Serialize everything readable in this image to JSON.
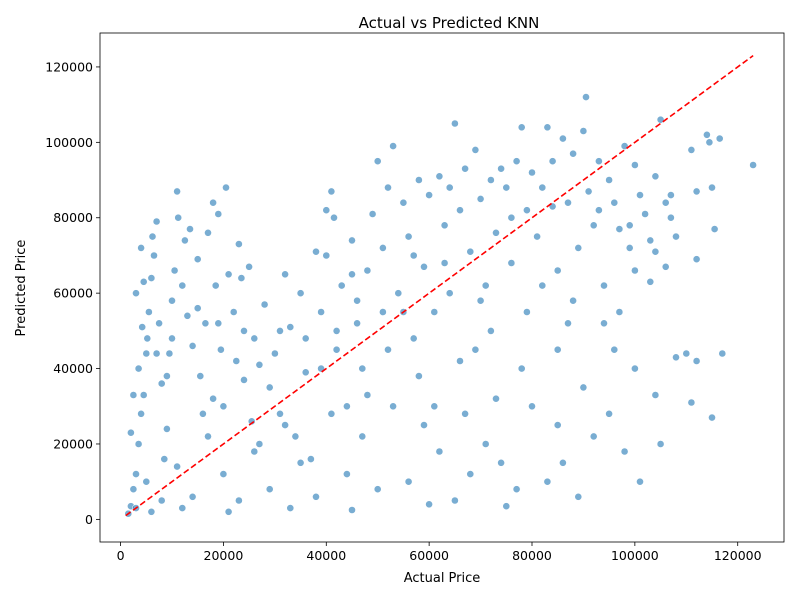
{
  "chart_data": {
    "type": "scatter",
    "title": "Actual vs Predicted KNN",
    "xlabel": "Actual Price",
    "ylabel": "Predicted Price",
    "xlim": [
      -4000,
      129000
    ],
    "ylim": [
      -6000,
      129000
    ],
    "xticks": [
      0,
      20000,
      40000,
      60000,
      80000,
      100000,
      120000
    ],
    "yticks": [
      0,
      20000,
      40000,
      60000,
      80000,
      100000,
      120000
    ],
    "xtick_labels": [
      "0",
      "20000",
      "40000",
      "60000",
      "80000",
      "100000",
      "120000"
    ],
    "ytick_labels": [
      "0",
      "20000",
      "40000",
      "60000",
      "80000",
      "100000",
      "120000"
    ],
    "grid": false,
    "point_color": "#1f77b4",
    "reference_line": {
      "style": "dashed",
      "color": "#ff0000",
      "x": [
        1000,
        123000
      ],
      "y": [
        1000,
        123000
      ]
    },
    "points": [
      [
        1500,
        1500
      ],
      [
        2000,
        3500
      ],
      [
        2500,
        8000
      ],
      [
        3000,
        12000
      ],
      [
        3500,
        20000
      ],
      [
        4000,
        28000
      ],
      [
        4500,
        33000
      ],
      [
        5000,
        44000
      ],
      [
        5500,
        55000
      ],
      [
        6000,
        64000
      ],
      [
        6500,
        70000
      ],
      [
        7000,
        79000
      ],
      [
        4000,
        72000
      ],
      [
        3000,
        60000
      ],
      [
        2000,
        23000
      ],
      [
        2500,
        33000
      ],
      [
        3500,
        40000
      ],
      [
        4200,
        51000
      ],
      [
        5200,
        48000
      ],
      [
        6200,
        75000
      ],
      [
        7500,
        52000
      ],
      [
        8000,
        36000
      ],
      [
        8500,
        16000
      ],
      [
        9000,
        24000
      ],
      [
        9500,
        44000
      ],
      [
        10000,
        58000
      ],
      [
        10500,
        66000
      ],
      [
        11000,
        87000
      ],
      [
        11200,
        80000
      ],
      [
        12000,
        62000
      ],
      [
        12500,
        74000
      ],
      [
        13000,
        54000
      ],
      [
        13500,
        77000
      ],
      [
        14000,
        46000
      ],
      [
        15000,
        69000
      ],
      [
        15500,
        38000
      ],
      [
        16000,
        28000
      ],
      [
        16500,
        52000
      ],
      [
        17000,
        76000
      ],
      [
        18000,
        84000
      ],
      [
        18500,
        62000
      ],
      [
        19000,
        81000
      ],
      [
        19500,
        45000
      ],
      [
        20000,
        30000
      ],
      [
        20500,
        88000
      ],
      [
        21000,
        65000
      ],
      [
        22000,
        55000
      ],
      [
        22500,
        42000
      ],
      [
        23000,
        73000
      ],
      [
        23500,
        64000
      ],
      [
        24000,
        37000
      ],
      [
        25000,
        67000
      ],
      [
        25500,
        26000
      ],
      [
        26000,
        48000
      ],
      [
        27000,
        20000
      ],
      [
        28000,
        57000
      ],
      [
        29000,
        35000
      ],
      [
        30000,
        44000
      ],
      [
        31000,
        28000
      ],
      [
        32000,
        65000
      ],
      [
        33000,
        51000
      ],
      [
        34000,
        22000
      ],
      [
        35000,
        60000
      ],
      [
        36000,
        39000
      ],
      [
        37000,
        16000
      ],
      [
        38000,
        71000
      ],
      [
        39000,
        55000
      ],
      [
        40000,
        70000
      ],
      [
        41000,
        87000
      ],
      [
        41500,
        80000
      ],
      [
        42000,
        45000
      ],
      [
        43000,
        62000
      ],
      [
        44000,
        30000
      ],
      [
        45000,
        74000
      ],
      [
        46000,
        52000
      ],
      [
        47000,
        40000
      ],
      [
        48000,
        66000
      ],
      [
        49000,
        81000
      ],
      [
        50000,
        95000
      ],
      [
        51000,
        72000
      ],
      [
        52000,
        88000
      ],
      [
        53000,
        99000
      ],
      [
        54000,
        60000
      ],
      [
        55000,
        84000
      ],
      [
        56000,
        75000
      ],
      [
        57000,
        48000
      ],
      [
        58000,
        90000
      ],
      [
        59000,
        67000
      ],
      [
        60000,
        86000
      ],
      [
        61000,
        55000
      ],
      [
        62000,
        91000
      ],
      [
        63000,
        78000
      ],
      [
        64000,
        88000
      ],
      [
        65000,
        105000
      ],
      [
        66000,
        82000
      ],
      [
        67000,
        93000
      ],
      [
        68000,
        71000
      ],
      [
        69000,
        98000
      ],
      [
        70000,
        85000
      ],
      [
        71000,
        62000
      ],
      [
        72000,
        90000
      ],
      [
        73000,
        76000
      ],
      [
        74000,
        93000
      ],
      [
        75000,
        88000
      ],
      [
        76000,
        68000
      ],
      [
        77000,
        95000
      ],
      [
        78000,
        104000
      ],
      [
        79000,
        82000
      ],
      [
        80000,
        92000
      ],
      [
        81000,
        75000
      ],
      [
        82000,
        88000
      ],
      [
        83000,
        104000
      ],
      [
        84000,
        95000
      ],
      [
        85000,
        66000
      ],
      [
        86000,
        101000
      ],
      [
        87000,
        84000
      ],
      [
        88000,
        97000
      ],
      [
        89000,
        72000
      ],
      [
        90000,
        103000
      ],
      [
        90500,
        112000
      ],
      [
        91000,
        87000
      ],
      [
        92000,
        78000
      ],
      [
        93000,
        95000
      ],
      [
        94000,
        62000
      ],
      [
        95000,
        90000
      ],
      [
        96000,
        84000
      ],
      [
        97000,
        77000
      ],
      [
        98000,
        99000
      ],
      [
        99000,
        72000
      ],
      [
        100000,
        94000
      ],
      [
        101000,
        86000
      ],
      [
        102000,
        81000
      ],
      [
        103000,
        74000
      ],
      [
        104000,
        91000
      ],
      [
        105000,
        106000
      ],
      [
        106000,
        84000
      ],
      [
        107000,
        80000
      ],
      [
        108000,
        75000
      ],
      [
        110000,
        44000
      ],
      [
        111000,
        98000
      ],
      [
        112000,
        69000
      ],
      [
        114000,
        102000
      ],
      [
        114500,
        100000
      ],
      [
        115000,
        88000
      ],
      [
        115500,
        77000
      ],
      [
        116500,
        101000
      ],
      [
        117000,
        44000
      ],
      [
        123000,
        94000
      ],
      [
        101000,
        10000
      ],
      [
        105000,
        20000
      ],
      [
        108000,
        43000
      ],
      [
        112000,
        42000
      ],
      [
        115000,
        27000
      ],
      [
        111000,
        31000
      ],
      [
        98000,
        18000
      ],
      [
        95000,
        28000
      ],
      [
        92000,
        22000
      ],
      [
        89000,
        6000
      ],
      [
        86000,
        15000
      ],
      [
        83000,
        10000
      ],
      [
        80000,
        30000
      ],
      [
        77000,
        8000
      ],
      [
        74000,
        15000
      ],
      [
        71000,
        20000
      ],
      [
        68000,
        12000
      ],
      [
        65000,
        5000
      ],
      [
        62000,
        18000
      ],
      [
        59000,
        25000
      ],
      [
        56000,
        10000
      ],
      [
        53000,
        30000
      ],
      [
        50000,
        8000
      ],
      [
        47000,
        22000
      ],
      [
        44000,
        12000
      ],
      [
        41000,
        28000
      ],
      [
        38000,
        6000
      ],
      [
        35000,
        15000
      ],
      [
        32000,
        25000
      ],
      [
        29000,
        8000
      ],
      [
        26000,
        18000
      ],
      [
        23000,
        5000
      ],
      [
        20000,
        12000
      ],
      [
        17000,
        22000
      ],
      [
        14000,
        6000
      ],
      [
        11000,
        14000
      ],
      [
        8000,
        5000
      ],
      [
        5000,
        10000
      ],
      [
        3000,
        3000
      ],
      [
        6000,
        2000
      ],
      [
        12000,
        3000
      ],
      [
        21000,
        2000
      ],
      [
        33000,
        3000
      ],
      [
        45000,
        2500
      ],
      [
        60000,
        4000
      ],
      [
        75000,
        3500
      ],
      [
        90000,
        35000
      ],
      [
        100000,
        40000
      ],
      [
        104000,
        33000
      ],
      [
        96000,
        45000
      ],
      [
        87000,
        52000
      ],
      [
        78000,
        40000
      ],
      [
        69000,
        45000
      ],
      [
        58000,
        38000
      ],
      [
        48000,
        33000
      ],
      [
        39000,
        40000
      ],
      [
        27000,
        41000
      ],
      [
        18000,
        32000
      ],
      [
        9000,
        38000
      ],
      [
        64000,
        60000
      ],
      [
        70000,
        58000
      ],
      [
        82000,
        62000
      ],
      [
        88000,
        58000
      ],
      [
        94000,
        52000
      ],
      [
        100000,
        66000
      ],
      [
        106000,
        67000
      ],
      [
        103000,
        63000
      ],
      [
        97000,
        55000
      ],
      [
        85000,
        45000
      ],
      [
        79000,
        55000
      ],
      [
        72000,
        50000
      ],
      [
        66000,
        42000
      ],
      [
        55000,
        55000
      ],
      [
        52000,
        45000
      ],
      [
        46000,
        58000
      ],
      [
        42000,
        50000
      ],
      [
        36000,
        48000
      ],
      [
        31000,
        50000
      ],
      [
        24000,
        50000
      ],
      [
        19000,
        52000
      ],
      [
        15000,
        56000
      ],
      [
        10000,
        48000
      ],
      [
        7000,
        44000
      ],
      [
        4500,
        63000
      ],
      [
        40000,
        82000
      ],
      [
        45000,
        65000
      ],
      [
        51000,
        55000
      ],
      [
        57000,
        70000
      ],
      [
        63000,
        68000
      ],
      [
        76000,
        80000
      ],
      [
        84000,
        83000
      ],
      [
        93000,
        82000
      ],
      [
        99000,
        78000
      ],
      [
        104000,
        71000
      ],
      [
        107000,
        86000
      ],
      [
        112000,
        87000
      ],
      [
        61000,
        30000
      ],
      [
        67000,
        28000
      ],
      [
        73000,
        32000
      ],
      [
        85000,
        25000
      ]
    ]
  }
}
